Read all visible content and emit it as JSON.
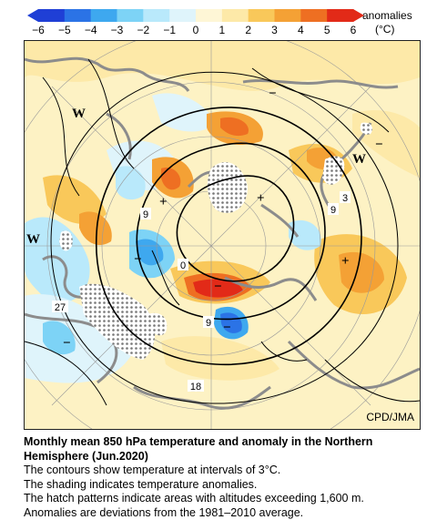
{
  "colorbar": {
    "title": "anomalies",
    "unit": "(°C)",
    "ticks": [
      "−6",
      "−5",
      "−4",
      "−3",
      "−2",
      "−1",
      "0",
      "1",
      "2",
      "3",
      "4",
      "5",
      "6"
    ],
    "colors": [
      "#1f3fd6",
      "#2b73e6",
      "#3ea8ef",
      "#7dd3f6",
      "#b9e9fb",
      "#dff4fb",
      "#fef6d6",
      "#fde9a8",
      "#f9c85a",
      "#f4a135",
      "#ee6f22",
      "#e22a18"
    ]
  },
  "map": {
    "contour_labels": [
      "9",
      "0",
      "9",
      "27",
      "9",
      "18",
      "9",
      "3"
    ],
    "high_markers": [
      "+",
      "+",
      "+"
    ],
    "low_markers": [
      "−",
      "−",
      "−",
      "−",
      "−",
      "−"
    ],
    "wave_markers": [
      "W",
      "W",
      "W"
    ],
    "credit": "CPD/JMA"
  },
  "caption": {
    "title": "Monthly mean 850 hPa temperature and anomaly in the Northern Hemisphere (Jun.2020)",
    "lines": [
      "The contours show temperature at intervals of 3°C.",
      "The shading indicates temperature anomalies.",
      "The hatch patterns indicate areas with altitudes exceeding 1,600 m.",
      "Anomalies are deviations from the 1981–2010 average."
    ]
  }
}
